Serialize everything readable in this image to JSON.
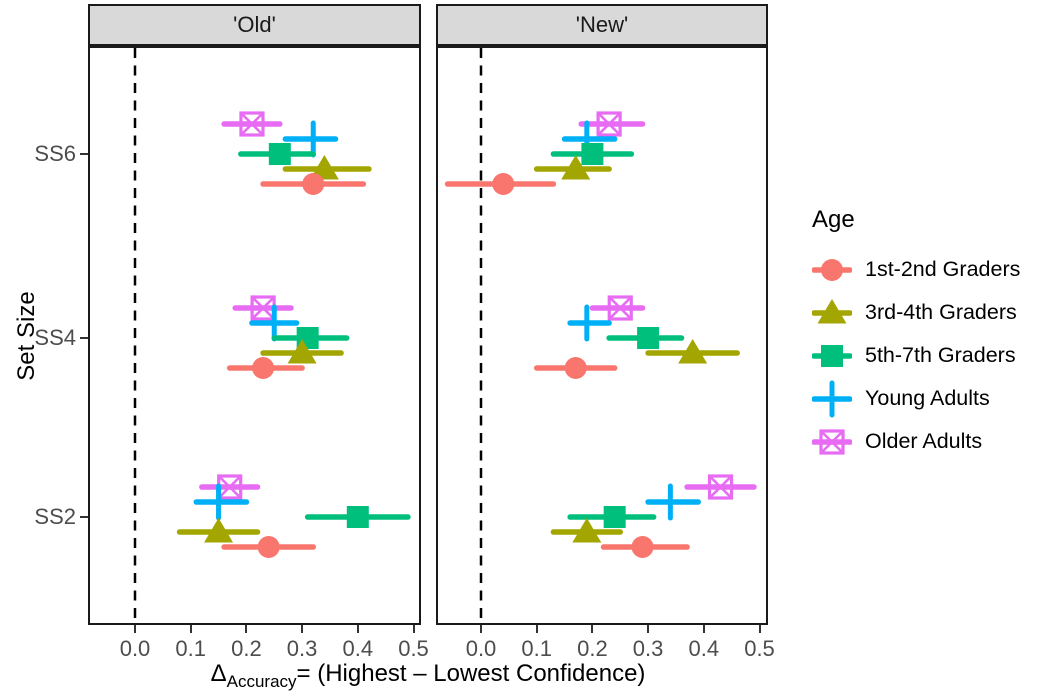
{
  "chart_data": {
    "type": "scatter",
    "subtype": "horizontal-pointrange, dodged by age group, faceted by item type",
    "facets": [
      {
        "key": "old",
        "label": "'Old'"
      },
      {
        "key": "new",
        "label": "'New'"
      }
    ],
    "x_axis": {
      "title_delta": "Δ",
      "title_subscript": "Accuracy",
      "title_rest": "= (Highest – Lowest Confidence)",
      "ticks": [
        "0.0",
        "0.1",
        "0.2",
        "0.3",
        "0.4",
        "0.5"
      ],
      "range": [
        -0.085,
        0.515
      ],
      "zero_line": {
        "style": "dashed",
        "x": 0,
        "color": "#000000"
      }
    },
    "y_axis": {
      "title": "Set Size",
      "categories": [
        "SS6",
        "SS4",
        "SS2"
      ]
    },
    "legend": {
      "title": "Age",
      "position": "right"
    },
    "series": [
      {
        "name": "1st-2nd Graders",
        "color": "#F8766D",
        "marker": "circle",
        "points": [
          {
            "facet": "old",
            "set": "SS6",
            "x": 0.32,
            "lo": 0.23,
            "hi": 0.41
          },
          {
            "facet": "old",
            "set": "SS4",
            "x": 0.23,
            "lo": 0.17,
            "hi": 0.3
          },
          {
            "facet": "old",
            "set": "SS2",
            "x": 0.24,
            "lo": 0.16,
            "hi": 0.32
          },
          {
            "facet": "new",
            "set": "SS6",
            "x": 0.04,
            "lo": -0.06,
            "hi": 0.13
          },
          {
            "facet": "new",
            "set": "SS4",
            "x": 0.17,
            "lo": 0.1,
            "hi": 0.24
          },
          {
            "facet": "new",
            "set": "SS2",
            "x": 0.29,
            "lo": 0.22,
            "hi": 0.37
          }
        ]
      },
      {
        "name": "3rd-4th Graders",
        "color": "#A3A500",
        "marker": "triangle",
        "points": [
          {
            "facet": "old",
            "set": "SS6",
            "x": 0.34,
            "lo": 0.27,
            "hi": 0.42
          },
          {
            "facet": "old",
            "set": "SS4",
            "x": 0.3,
            "lo": 0.23,
            "hi": 0.37
          },
          {
            "facet": "old",
            "set": "SS2",
            "x": 0.15,
            "lo": 0.08,
            "hi": 0.22
          },
          {
            "facet": "new",
            "set": "SS6",
            "x": 0.17,
            "lo": 0.1,
            "hi": 0.23
          },
          {
            "facet": "new",
            "set": "SS4",
            "x": 0.38,
            "lo": 0.3,
            "hi": 0.46
          },
          {
            "facet": "new",
            "set": "SS2",
            "x": 0.19,
            "lo": 0.13,
            "hi": 0.25
          }
        ]
      },
      {
        "name": "5th-7th Graders",
        "color": "#00BF7D",
        "marker": "square",
        "points": [
          {
            "facet": "old",
            "set": "SS6",
            "x": 0.26,
            "lo": 0.19,
            "hi": 0.32
          },
          {
            "facet": "old",
            "set": "SS4",
            "x": 0.31,
            "lo": 0.25,
            "hi": 0.38
          },
          {
            "facet": "old",
            "set": "SS2",
            "x": 0.4,
            "lo": 0.31,
            "hi": 0.49
          },
          {
            "facet": "new",
            "set": "SS6",
            "x": 0.2,
            "lo": 0.13,
            "hi": 0.27
          },
          {
            "facet": "new",
            "set": "SS4",
            "x": 0.3,
            "lo": 0.23,
            "hi": 0.36
          },
          {
            "facet": "new",
            "set": "SS2",
            "x": 0.24,
            "lo": 0.16,
            "hi": 0.31
          }
        ]
      },
      {
        "name": "Young Adults",
        "color": "#00B0F6",
        "marker": "plus",
        "points": [
          {
            "facet": "old",
            "set": "SS6",
            "x": 0.32,
            "lo": 0.27,
            "hi": 0.36
          },
          {
            "facet": "old",
            "set": "SS4",
            "x": 0.25,
            "lo": 0.21,
            "hi": 0.29
          },
          {
            "facet": "old",
            "set": "SS2",
            "x": 0.15,
            "lo": 0.11,
            "hi": 0.2
          },
          {
            "facet": "new",
            "set": "SS6",
            "x": 0.19,
            "lo": 0.15,
            "hi": 0.24
          },
          {
            "facet": "new",
            "set": "SS4",
            "x": 0.19,
            "lo": 0.16,
            "hi": 0.23
          },
          {
            "facet": "new",
            "set": "SS2",
            "x": 0.34,
            "lo": 0.3,
            "hi": 0.39
          }
        ]
      },
      {
        "name": "Older Adults",
        "color": "#E76BF3",
        "marker": "square-x",
        "points": [
          {
            "facet": "old",
            "set": "SS6",
            "x": 0.21,
            "lo": 0.16,
            "hi": 0.26
          },
          {
            "facet": "old",
            "set": "SS4",
            "x": 0.23,
            "lo": 0.18,
            "hi": 0.28
          },
          {
            "facet": "old",
            "set": "SS2",
            "x": 0.17,
            "lo": 0.12,
            "hi": 0.22
          },
          {
            "facet": "new",
            "set": "SS6",
            "x": 0.23,
            "lo": 0.18,
            "hi": 0.29
          },
          {
            "facet": "new",
            "set": "SS4",
            "x": 0.25,
            "lo": 0.2,
            "hi": 0.29
          },
          {
            "facet": "new",
            "set": "SS2",
            "x": 0.43,
            "lo": 0.37,
            "hi": 0.49
          }
        ]
      }
    ],
    "style_colors": {
      "strip_background": "#d9d9d9",
      "panel_border": "#1a1a1a",
      "axis_text": "#4d4d4d",
      "tick_mark": "#333333"
    }
  }
}
